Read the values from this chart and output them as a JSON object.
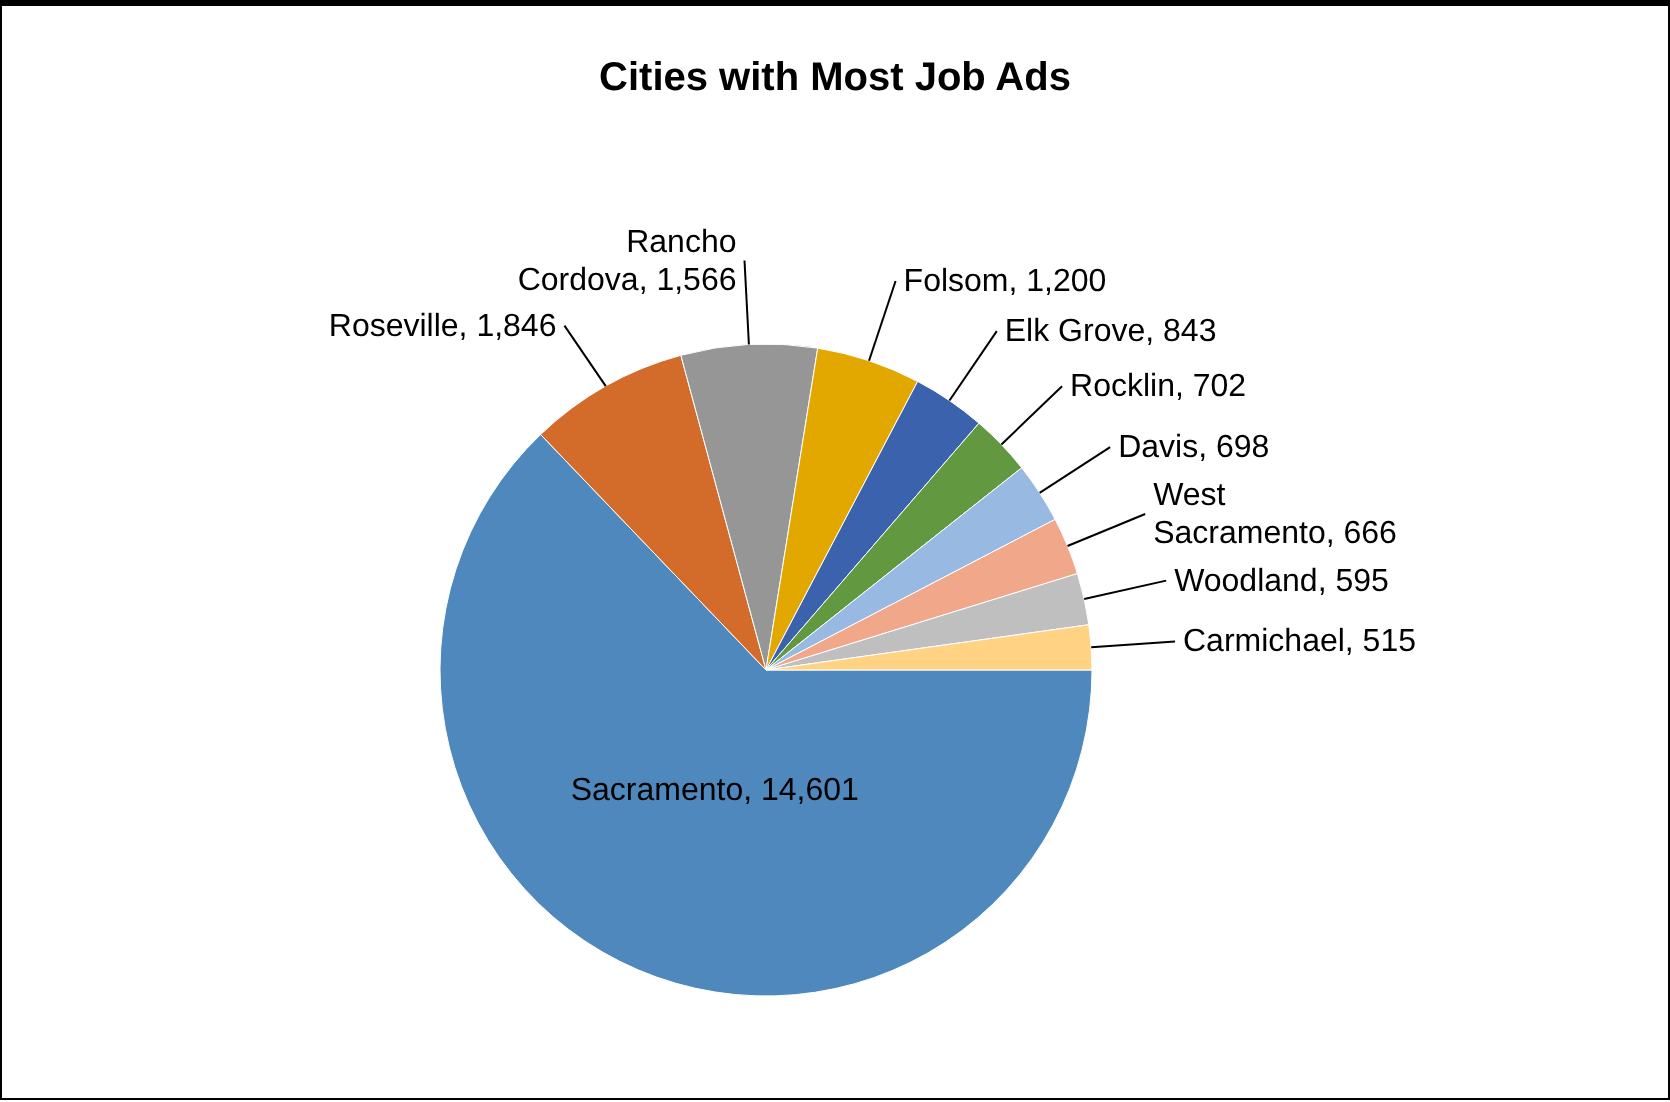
{
  "chart_data": {
    "type": "pie",
    "title": "Cities with Most Job Ads",
    "categories": [
      "Sacramento",
      "Roseville",
      "Rancho Cordova",
      "Folsom",
      "Elk Grove",
      "Rocklin",
      "Davis",
      "West Sacramento",
      "Woodland",
      "Carmichael"
    ],
    "values": [
      14601,
      1846,
      1566,
      1200,
      843,
      702,
      698,
      666,
      595,
      515
    ],
    "value_labels": [
      "14,601",
      "1,846",
      "1,566",
      "1,200",
      "843",
      "702",
      "698",
      "666",
      "595",
      "515"
    ],
    "colors": [
      "#4f88bd",
      "#d36b2b",
      "#969696",
      "#e3a800",
      "#3b63ad",
      "#62983f",
      "#98bae2",
      "#f1a78a",
      "#bfbfbf",
      "#ffd383"
    ],
    "legend": false
  }
}
